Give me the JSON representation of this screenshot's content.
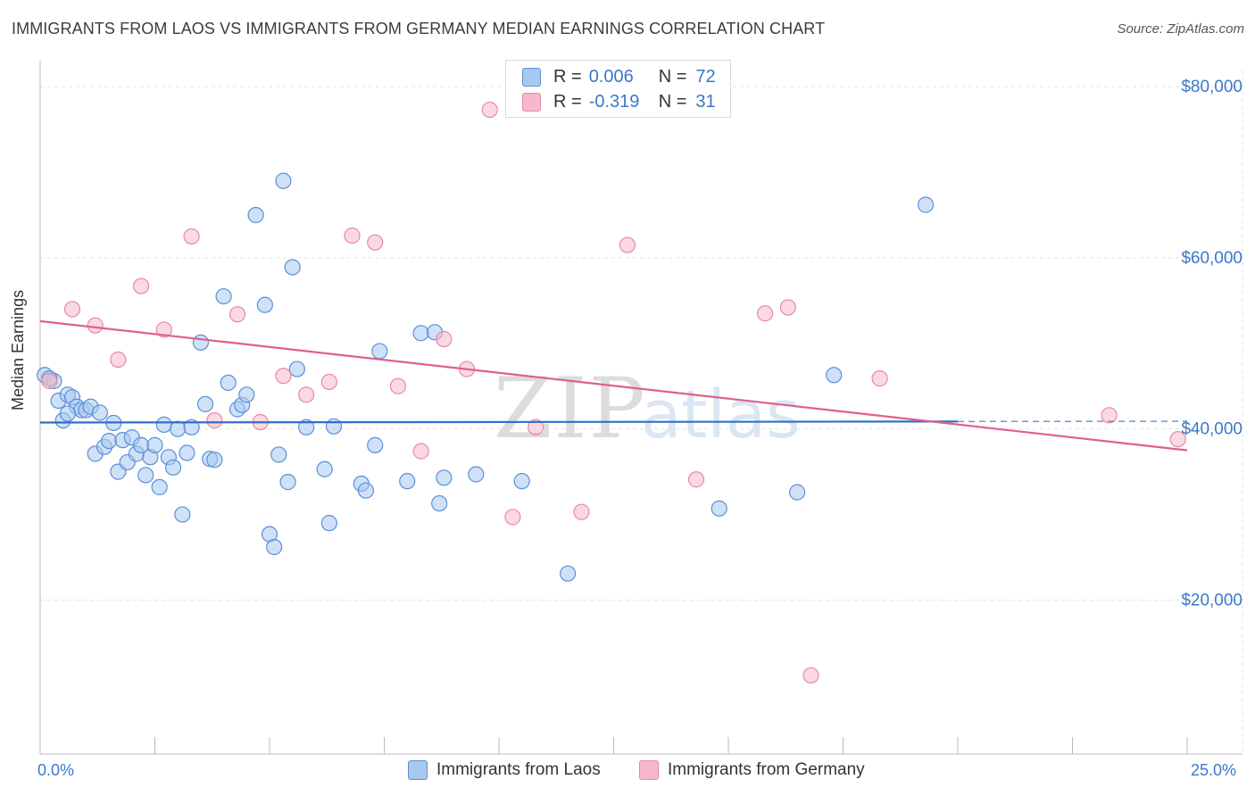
{
  "header": {
    "title": "IMMIGRANTS FROM LAOS VS IMMIGRANTS FROM GERMANY MEDIAN EARNINGS CORRELATION CHART",
    "source": "Source: ZipAtlas.com"
  },
  "legend": {
    "rows": [
      {
        "r_label": "R =",
        "r_value": "0.006",
        "n_label": "N =",
        "n_value": "72",
        "color": "#a8c8f0"
      },
      {
        "r_label": "R =",
        "r_value": "-0.319",
        "n_label": "N =",
        "n_value": "31",
        "color": "#f6b9cc"
      }
    ]
  },
  "watermark": {
    "zip": "ZIP",
    "atlas": "atlas"
  },
  "colors": {
    "laos_fill": "#a8c8f0",
    "laos_stroke": "#5b8fd6",
    "laos_line": "#2f6fc8",
    "germany_fill": "#f6b9cc",
    "germany_stroke": "#e888a6",
    "germany_line": "#e0608a",
    "axis_label": "#3b78c9",
    "grid": "#e3e3e3"
  },
  "chart_data": {
    "type": "scatter",
    "title": "IMMIGRANTS FROM LAOS VS IMMIGRANTS FROM GERMANY MEDIAN EARNINGS CORRELATION CHART",
    "xlabel": "",
    "ylabel": "Median Earnings",
    "xlim": [
      0,
      25
    ],
    "ylim": [
      2000,
      82000
    ],
    "x_tick_labels": [
      "0.0%",
      "25.0%"
    ],
    "y_ticks": [
      20000,
      40000,
      60000,
      80000
    ],
    "y_tick_labels": [
      "$20,000",
      "$40,000",
      "$60,000",
      "$80,000"
    ],
    "grid": true,
    "legend_position": "top-center",
    "series": [
      {
        "name": "Immigrants from Laos",
        "points": [
          [
            0.1,
            46300
          ],
          [
            0.3,
            45600
          ],
          [
            0.4,
            43300
          ],
          [
            0.5,
            41000
          ],
          [
            0.6,
            44000
          ],
          [
            0.7,
            43700
          ],
          [
            0.8,
            42600
          ],
          [
            0.9,
            42200
          ],
          [
            1.0,
            42200
          ],
          [
            1.1,
            42600
          ],
          [
            1.2,
            37100
          ],
          [
            1.3,
            41900
          ],
          [
            1.4,
            37900
          ],
          [
            1.5,
            38600
          ],
          [
            1.6,
            40700
          ],
          [
            1.7,
            35000
          ],
          [
            1.8,
            38700
          ],
          [
            1.9,
            36100
          ],
          [
            2.0,
            39000
          ],
          [
            2.1,
            37100
          ],
          [
            2.2,
            38100
          ],
          [
            2.3,
            34600
          ],
          [
            2.4,
            36700
          ],
          [
            2.5,
            38100
          ],
          [
            2.6,
            33200
          ],
          [
            2.7,
            40500
          ],
          [
            2.8,
            36700
          ],
          [
            2.9,
            35500
          ],
          [
            3.0,
            40000
          ],
          [
            3.1,
            30000
          ],
          [
            3.2,
            37200
          ],
          [
            3.3,
            40200
          ],
          [
            3.5,
            50100
          ],
          [
            3.6,
            42900
          ],
          [
            3.7,
            36500
          ],
          [
            3.8,
            36400
          ],
          [
            4.0,
            55500
          ],
          [
            4.1,
            45400
          ],
          [
            4.3,
            42300
          ],
          [
            4.4,
            42800
          ],
          [
            4.5,
            44000
          ],
          [
            4.7,
            65000
          ],
          [
            4.9,
            54500
          ],
          [
            5.0,
            27700
          ],
          [
            5.1,
            26200
          ],
          [
            5.2,
            37000
          ],
          [
            5.3,
            69000
          ],
          [
            5.4,
            33800
          ],
          [
            5.5,
            58900
          ],
          [
            5.6,
            47000
          ],
          [
            5.8,
            40200
          ],
          [
            6.2,
            35300
          ],
          [
            6.3,
            29000
          ],
          [
            6.4,
            40300
          ],
          [
            7.0,
            33600
          ],
          [
            7.1,
            32800
          ],
          [
            7.3,
            38100
          ],
          [
            7.4,
            49100
          ],
          [
            8.0,
            33900
          ],
          [
            8.3,
            51200
          ],
          [
            8.6,
            51300
          ],
          [
            8.7,
            31300
          ],
          [
            8.8,
            34300
          ],
          [
            9.5,
            34700
          ],
          [
            10.5,
            33900
          ],
          [
            11.5,
            23100
          ],
          [
            14.8,
            30700
          ],
          [
            16.5,
            32600
          ],
          [
            17.3,
            46300
          ],
          [
            19.3,
            66200
          ],
          [
            0.2,
            45900
          ],
          [
            0.6,
            41800
          ]
        ],
        "trend": {
          "x": [
            0,
            25
          ],
          "y": [
            40750,
            40900
          ],
          "solid_until_x": 20
        }
      },
      {
        "name": "Immigrants from Germany",
        "points": [
          [
            0.2,
            45600
          ],
          [
            0.7,
            54000
          ],
          [
            1.2,
            52100
          ],
          [
            1.7,
            48100
          ],
          [
            2.2,
            56700
          ],
          [
            2.7,
            51600
          ],
          [
            3.3,
            62500
          ],
          [
            3.8,
            41000
          ],
          [
            4.3,
            53400
          ],
          [
            4.8,
            40800
          ],
          [
            5.3,
            46200
          ],
          [
            5.8,
            44000
          ],
          [
            6.3,
            45500
          ],
          [
            6.8,
            62600
          ],
          [
            7.3,
            61800
          ],
          [
            7.8,
            45000
          ],
          [
            8.3,
            37400
          ],
          [
            8.8,
            50500
          ],
          [
            9.3,
            47000
          ],
          [
            9.8,
            77300
          ],
          [
            10.3,
            29700
          ],
          [
            10.8,
            40200
          ],
          [
            11.8,
            30300
          ],
          [
            12.8,
            61500
          ],
          [
            14.3,
            34100
          ],
          [
            15.8,
            53500
          ],
          [
            16.3,
            54200
          ],
          [
            16.8,
            11200
          ],
          [
            18.3,
            45900
          ],
          [
            23.3,
            41600
          ],
          [
            24.8,
            38800
          ]
        ],
        "trend": {
          "x": [
            0,
            25
          ],
          "y": [
            52600,
            37500
          ]
        }
      }
    ]
  }
}
